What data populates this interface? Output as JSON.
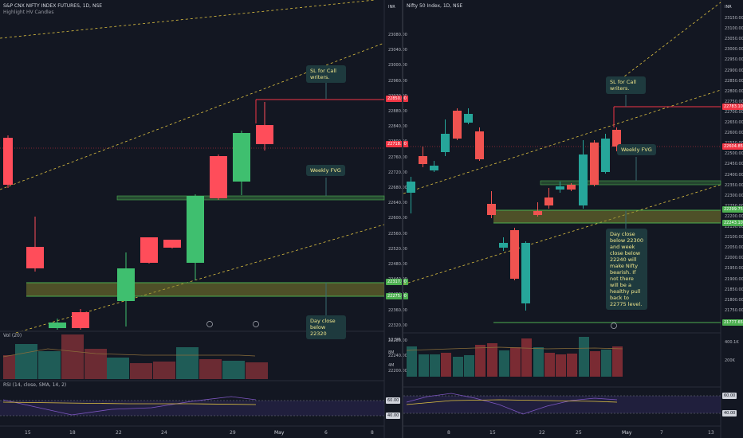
{
  "left": {
    "title": "S&P CNX NIFTY INDEX FUTURES, 1D, NSE",
    "subtitle": "Highlight HV Candles",
    "currency": "INR",
    "vol_label": "Vol (20)",
    "rsi_label": "RSI (14, close, SMA, 14, 2)",
    "price_axis": [
      "23080.00",
      "23040.00",
      "23000.00",
      "22960.00",
      "22920.00",
      "22880.00",
      "22840.00",
      "22800.00",
      "22760.00",
      "22720.00",
      "22680.00",
      "22640.00",
      "22600.00",
      "22560.00",
      "22520.00",
      "22480.00",
      "22440.00",
      "22400.00",
      "22360.00",
      "22320.00",
      "22280.00",
      "22240.00",
      "22200.00"
    ],
    "tags": {
      "sl": "22850.00",
      "last": "22718.30",
      "fvg_top": "22317.00",
      "fvg_bot": "22275.00"
    },
    "vol_axis": [
      "12.5M",
      "8M",
      "4M"
    ],
    "rsi_axis": [
      "60.00",
      "40.00"
    ],
    "x_labels": [
      "15",
      "18",
      "22",
      "24",
      "29",
      "May",
      "6",
      "8"
    ],
    "notes": {
      "sl": "SL for Call writers.",
      "fvg": "Weekly FVG",
      "day": "Day close below 22320"
    }
  },
  "right": {
    "title": "Nifty 50 Index, 1D, NSE",
    "currency": "INR",
    "price_axis": [
      "23150.00",
      "23100.00",
      "23050.00",
      "23000.00",
      "22950.00",
      "22900.00",
      "22850.00",
      "22800.00",
      "22750.00",
      "22700.00",
      "22650.00",
      "22600.00",
      "22550.00",
      "22500.00",
      "22450.00",
      "22400.00",
      "22350.00",
      "22300.00",
      "22250.00",
      "22200.00",
      "22150.00",
      "22100.00",
      "22050.00",
      "22000.00",
      "21950.00",
      "21900.00",
      "21850.00",
      "21800.00",
      "21750.00"
    ],
    "tags": {
      "sl": "22783.10",
      "last": "22604.85",
      "fvg_top": "22299.75",
      "fvg_bot": "22243.10",
      "low": "21777.65"
    },
    "vol_axis": [
      "400.1K",
      "200K"
    ],
    "rsi_axis": [
      "60.00",
      "40.00"
    ],
    "x_labels": [
      "8",
      "15",
      "22",
      "25",
      "May",
      "7",
      "13"
    ],
    "notes": {
      "sl": "SL for Call writers.",
      "fvg": "Weekly FVG",
      "day": "Day close below 22300 and week close below 22240 will make Nifty bearish. If not there will be a healthy pull back to 22775 level."
    }
  }
}
